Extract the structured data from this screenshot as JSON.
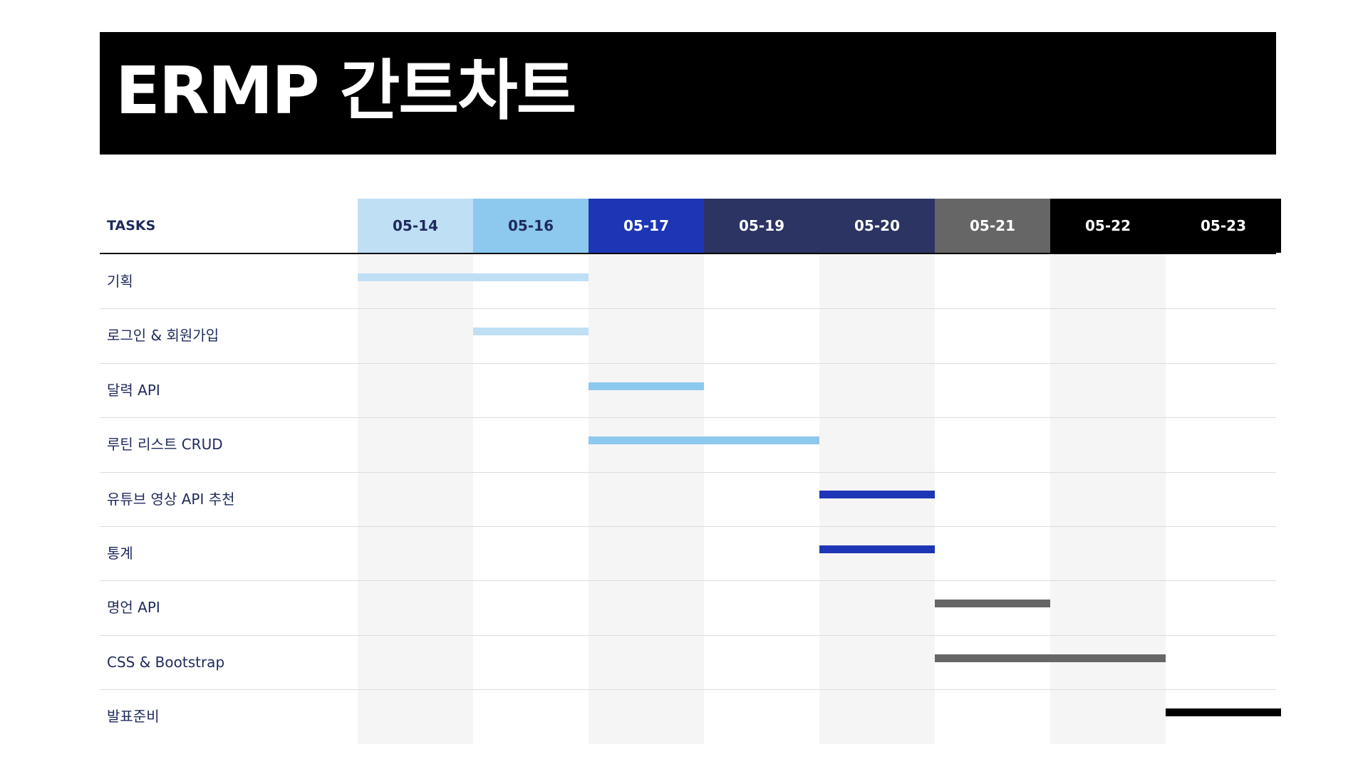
{
  "title": "ERMP 간트차트",
  "chart_data": {
    "type": "gantt",
    "task_header": "TASKS",
    "dates": [
      {
        "label": "05-14",
        "bg": "#bfdff5",
        "fg": "#1f2a5c",
        "shade": true
      },
      {
        "label": "05-16",
        "bg": "#8dc8ee",
        "fg": "#1f2a5c",
        "shade": false
      },
      {
        "label": "05-17",
        "bg": "#1d36b5",
        "fg": "#ffffff",
        "shade": true
      },
      {
        "label": "05-19",
        "bg": "#2b3463",
        "fg": "#ffffff",
        "shade": false
      },
      {
        "label": "05-20",
        "bg": "#2b3463",
        "fg": "#ffffff",
        "shade": true
      },
      {
        "label": "05-21",
        "bg": "#666666",
        "fg": "#ffffff",
        "shade": false
      },
      {
        "label": "05-22",
        "bg": "#000000",
        "fg": "#ffffff",
        "shade": true
      },
      {
        "label": "05-23",
        "bg": "#000000",
        "fg": "#ffffff",
        "shade": false
      }
    ],
    "tasks": [
      {
        "name": "기획",
        "start": 0,
        "end": 2,
        "color": "#bfdff5"
      },
      {
        "name": "로그인 & 회원가입",
        "start": 1,
        "end": 2,
        "color": "#bfdff5"
      },
      {
        "name": "달력 API",
        "start": 2,
        "end": 3,
        "color": "#8dc8ee"
      },
      {
        "name": "루틴 리스트 CRUD",
        "start": 2,
        "end": 4,
        "color": "#8dc8ee"
      },
      {
        "name": "유튜브 영상 API 추천",
        "start": 4,
        "end": 5,
        "color": "#1d36b5"
      },
      {
        "name": "통계",
        "start": 4,
        "end": 5,
        "color": "#1d36b5"
      },
      {
        "name": "명언 API",
        "start": 5,
        "end": 6,
        "color": "#666666"
      },
      {
        "name": "CSS & Bootstrap",
        "start": 5,
        "end": 7,
        "color": "#666666"
      },
      {
        "name": "발표준비",
        "start": 7,
        "end": 8,
        "color": "#000000"
      }
    ]
  }
}
